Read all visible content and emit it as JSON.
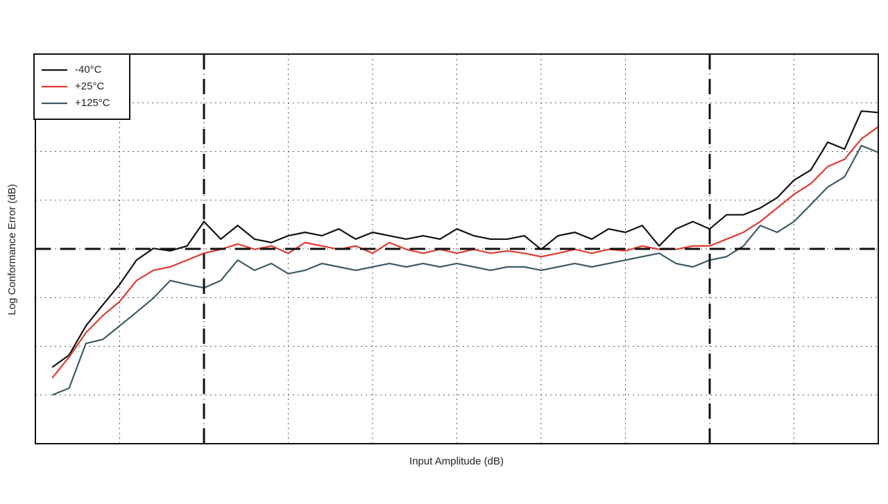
{
  "chart_data": {
    "type": "line",
    "x_label": "Input Amplitude (dB)",
    "y_label": "Log Conformance Error (dB)",
    "x": [
      0.2,
      0.4,
      0.6,
      0.8,
      1.0,
      1.2,
      1.4,
      1.6,
      1.8,
      2.0,
      2.2,
      2.4,
      2.6,
      2.8,
      3.0,
      3.2,
      3.4,
      3.6,
      3.8,
      4.0,
      4.2,
      4.4,
      4.6,
      4.8,
      5.0,
      5.2,
      5.4,
      5.6,
      5.8,
      6.0,
      6.2,
      6.4,
      6.6,
      6.8,
      7.0,
      7.2,
      7.4,
      7.6,
      7.8,
      8.0,
      8.2,
      8.4,
      8.6,
      8.8,
      9.0,
      9.2,
      9.4,
      9.6,
      9.8,
      10.0
    ],
    "series": [
      {
        "name": "-40°C",
        "color": "#111111",
        "values": [
          1.57,
          1.82,
          2.42,
          2.85,
          3.27,
          3.77,
          4.01,
          3.96,
          4.06,
          4.56,
          4.2,
          4.48,
          4.2,
          4.13,
          4.27,
          4.34,
          4.27,
          4.41,
          4.2,
          4.34,
          4.27,
          4.2,
          4.27,
          4.2,
          4.41,
          4.27,
          4.2,
          4.2,
          4.27,
          3.99,
          4.27,
          4.34,
          4.2,
          4.41,
          4.34,
          4.48,
          4.06,
          4.41,
          4.56,
          4.41,
          4.7,
          4.7,
          4.84,
          5.05,
          5.41,
          5.62,
          6.19,
          6.05,
          6.83,
          6.8
        ]
      },
      {
        "name": "+25°C",
        "color": "#e03a2e",
        "values": [
          1.35,
          1.78,
          2.28,
          2.63,
          2.92,
          3.35,
          3.56,
          3.63,
          3.77,
          3.91,
          3.99,
          4.1,
          3.99,
          4.06,
          3.91,
          4.13,
          4.06,
          3.99,
          4.06,
          3.91,
          4.13,
          3.99,
          3.91,
          3.99,
          3.91,
          3.99,
          3.91,
          3.96,
          3.91,
          3.84,
          3.91,
          3.99,
          3.91,
          3.99,
          3.96,
          4.06,
          3.99,
          3.99,
          4.06,
          4.06,
          4.2,
          4.34,
          4.56,
          4.84,
          5.12,
          5.34,
          5.69,
          5.84,
          6.26,
          6.51
        ]
      },
      {
        "name": "+125°C",
        "color": "#3d5a66",
        "values": [
          1.0,
          1.14,
          2.06,
          2.14,
          2.42,
          2.7,
          2.99,
          3.35,
          3.27,
          3.2,
          3.35,
          3.77,
          3.56,
          3.7,
          3.49,
          3.56,
          3.7,
          3.63,
          3.56,
          3.63,
          3.7,
          3.63,
          3.7,
          3.63,
          3.7,
          3.63,
          3.56,
          3.63,
          3.63,
          3.56,
          3.63,
          3.7,
          3.63,
          3.7,
          3.77,
          3.84,
          3.91,
          3.7,
          3.63,
          3.77,
          3.84,
          4.06,
          4.48,
          4.34,
          4.56,
          4.91,
          5.27,
          5.48,
          6.12,
          5.98
        ]
      }
    ],
    "xlim": [
      0,
      10
    ],
    "xticks": [
      0,
      1,
      2,
      3,
      4,
      5,
      6,
      7,
      8,
      9,
      10
    ],
    "ylim": [
      0,
      8
    ],
    "yticks": [
      0,
      1,
      2,
      3,
      4,
      5,
      6,
      7,
      8
    ],
    "tick_labels": false,
    "grid": true,
    "legend": "upper left",
    "reference_lines": {
      "x": [
        2,
        8
      ],
      "y": [
        4
      ]
    }
  }
}
